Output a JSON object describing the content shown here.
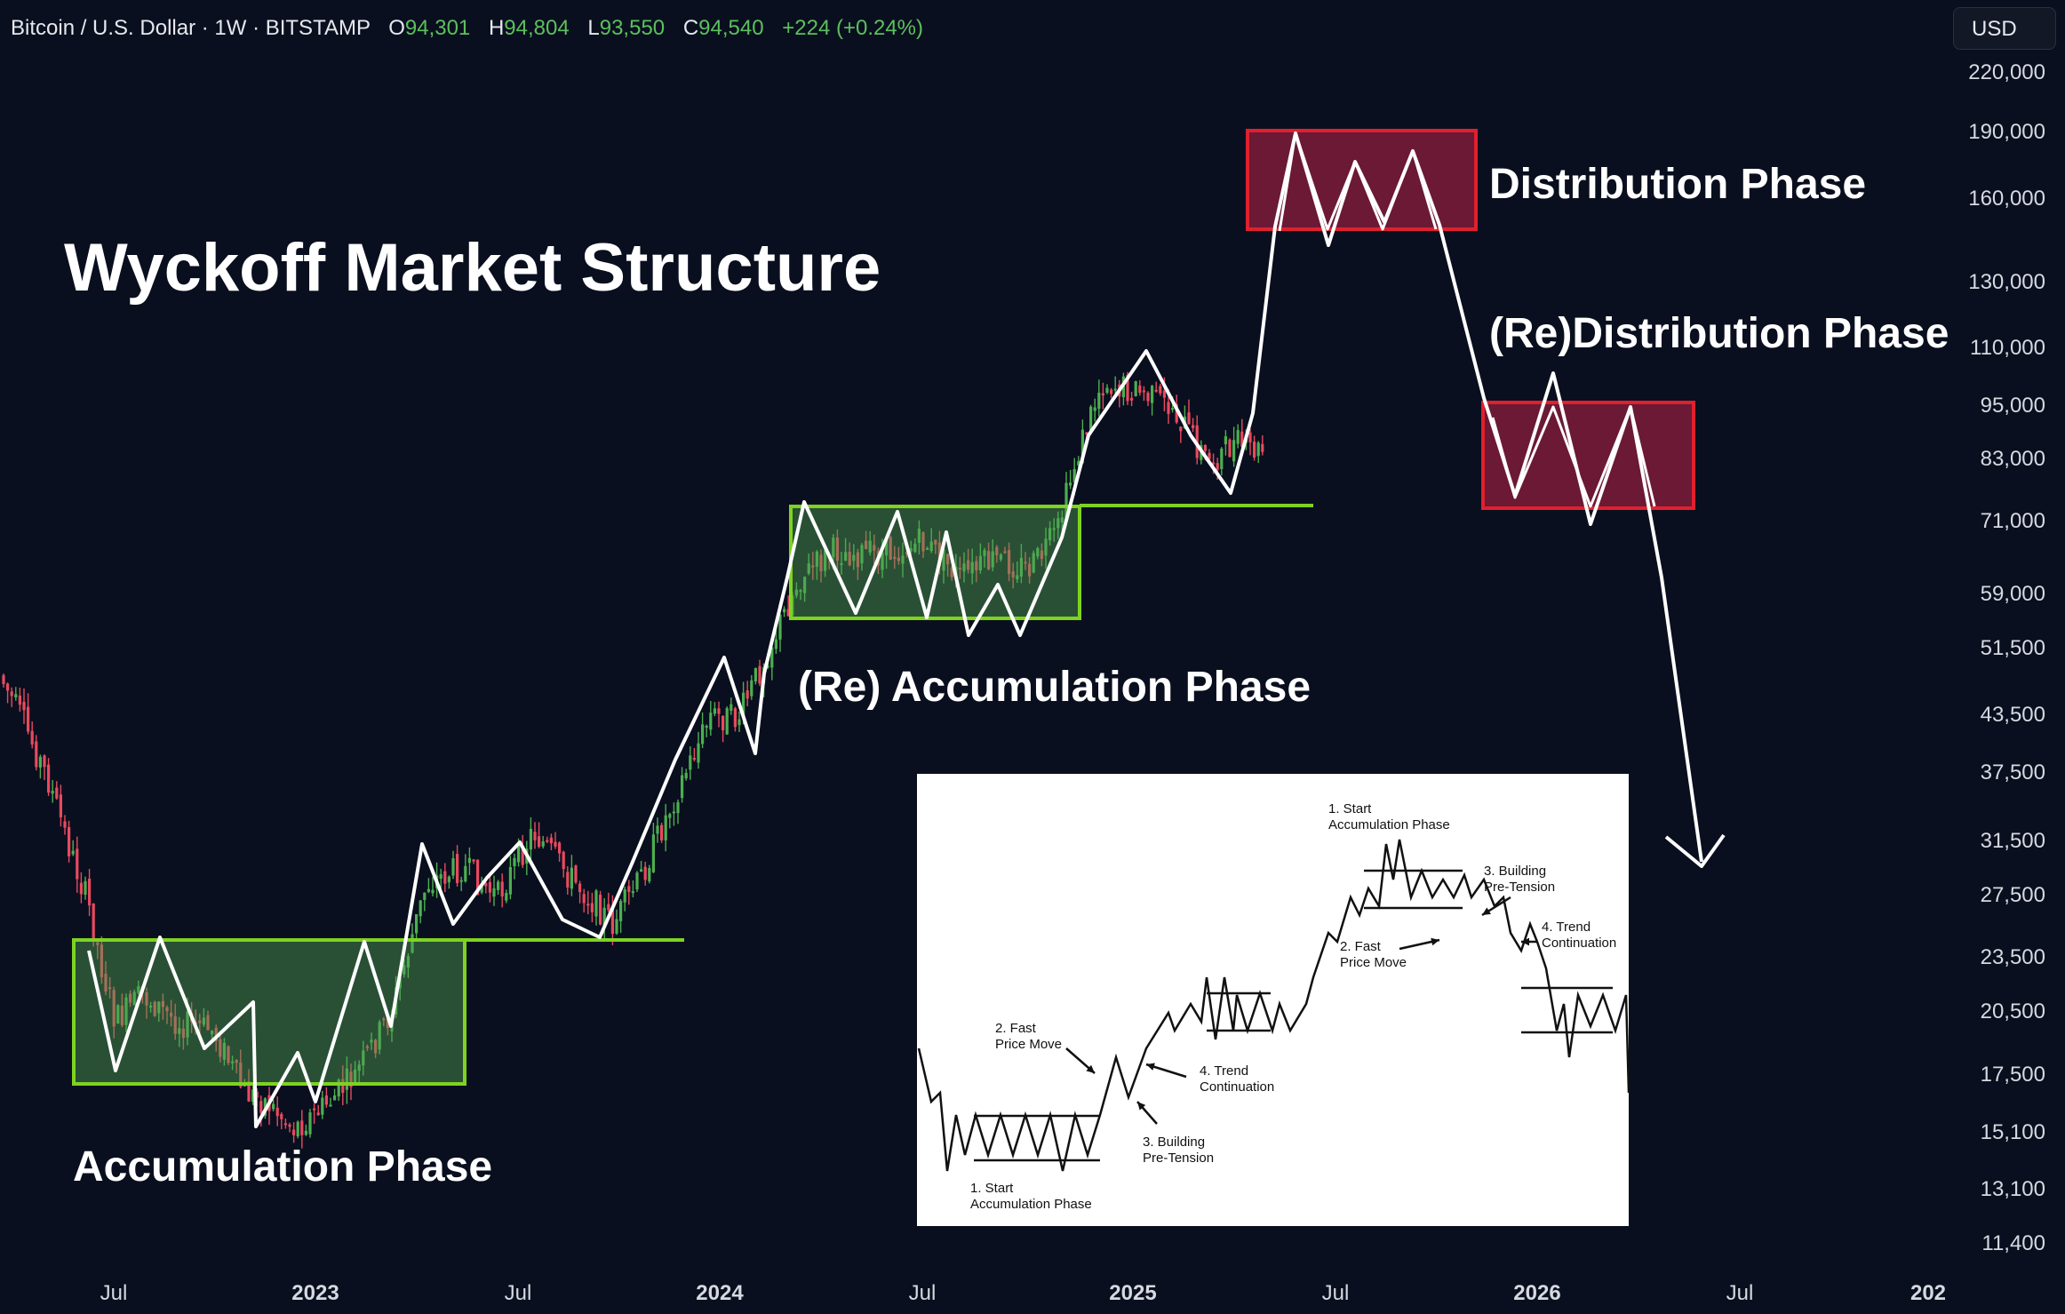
{
  "header": {
    "symbol": "Bitcoin / U.S. Dollar · 1W · BITSTAMP",
    "open_label": "O",
    "open": "94,301",
    "high_label": "H",
    "high": "94,804",
    "low_label": "L",
    "low": "93,550",
    "close_label": "C",
    "close": "94,540",
    "change": "+224 (+0.24%)"
  },
  "currency_button": "USD",
  "title": "Wyckoff Market Structure",
  "labels": {
    "accumulation": "Accumulation Phase",
    "re_accumulation": "(Re) Accumulation Phase",
    "distribution": "Distribution Phase",
    "re_distribution": "(Re)Distribution Phase"
  },
  "colors": {
    "background": "#0a0f1f",
    "up_candle": "#4caf50",
    "down_candle": "#e84a5f",
    "accumulation_box": "#7ed321",
    "distribution_box": "#e0202e",
    "path": "#ffffff"
  },
  "chart_data": {
    "type": "candlestick",
    "y_scale": "log",
    "y_ticks": [
      "220,000",
      "190,000",
      "160,000",
      "130,000",
      "110,000",
      "95,000",
      "83,000",
      "71,000",
      "59,000",
      "51,500",
      "43,500",
      "37,500",
      "31,500",
      "27,500",
      "23,500",
      "20,500",
      "17,500",
      "15,100",
      "13,100",
      "11,400"
    ],
    "x_ticks": [
      "Jul",
      "2023",
      "Jul",
      "2024",
      "Jul",
      "2025",
      "Jul",
      "2026",
      "Jul",
      "202"
    ],
    "ohlc_last": {
      "open": 94301,
      "high": 94804,
      "low": 93550,
      "close": 94540
    },
    "phases": [
      {
        "name": "Accumulation Phase",
        "from": "2022-06",
        "to": "2023-03",
        "low": 17500,
        "high": 24500
      },
      {
        "name": "(Re) Accumulation Phase",
        "from": "2024-03",
        "to": "2024-11",
        "low": 56000,
        "high": 73000
      },
      {
        "name": "Distribution Phase",
        "from": "2025-05",
        "to": "2025-10",
        "low": 145000,
        "high": 200000
      },
      {
        "name": "(Re)Distribution Phase",
        "from": "2025-11",
        "to": "2026-03",
        "low": 72000,
        "high": 93000
      }
    ],
    "support_lines": [
      24500,
      73000
    ],
    "inset": {
      "labels": [
        "1. Start\nAccumulation Phase",
        "2. Fast\nPrice Move",
        "3. Building\nPre-Tension",
        "4. Trend\nContinuation",
        "1. Start\nAccumulation Phase",
        "2. Fast\nPrice Move",
        "3. Building\nPre-Tension",
        "4. Trend\nContinuation"
      ]
    }
  }
}
